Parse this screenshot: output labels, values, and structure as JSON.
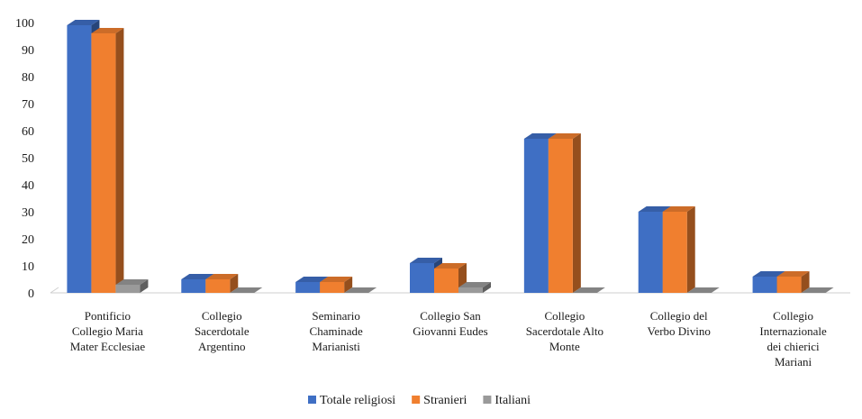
{
  "chart_data": {
    "type": "bar",
    "title": "",
    "xlabel": "",
    "ylabel": "",
    "ylim": [
      0,
      100
    ],
    "yticks": [
      0,
      10,
      20,
      30,
      40,
      50,
      60,
      70,
      80,
      90,
      100
    ],
    "grid": false,
    "legend_position": "bottom",
    "categories": [
      [
        "Pontificio",
        "Collegio Maria",
        "Mater Ecclesiae"
      ],
      [
        "Collegio",
        "Sacerdotale",
        "Argentino"
      ],
      [
        "Seminario",
        "Chaminade",
        "Marianisti"
      ],
      [
        "Collegio San",
        "Giovanni Eudes"
      ],
      [
        "Collegio",
        "Sacerdotale Alto",
        "Monte"
      ],
      [
        "Collegio del",
        "Verbo Divino"
      ],
      [
        "Collegio",
        "Internazionale",
        "dei chierici",
        "Mariani"
      ]
    ],
    "series": [
      {
        "name": "Totale religiosi",
        "color": "#3f6fc4",
        "values": [
          99,
          5,
          4,
          11,
          57,
          30,
          6
        ]
      },
      {
        "name": "Stranieri",
        "color": "#f07f2f",
        "values": [
          96,
          5,
          4,
          9,
          57,
          30,
          6
        ]
      },
      {
        "name": "Italiani",
        "color": "#9a9a9a",
        "values": [
          3,
          0,
          0,
          2,
          0,
          0,
          0
        ]
      }
    ]
  }
}
